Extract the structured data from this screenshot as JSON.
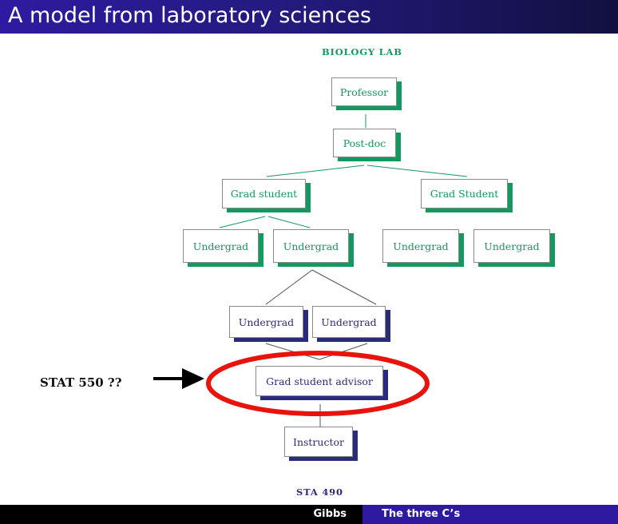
{
  "slide": {
    "title": "A model from laboratory sciences"
  },
  "diagram": {
    "top_label": "BIOLOGY LAB",
    "bottom_label": "STA 490",
    "side_label": "STAT 550 ??",
    "colors": {
      "biology": "#119960",
      "sta": "#2c2a7a",
      "highlight": "#e8130c",
      "arrow": "#000000"
    },
    "nodes": {
      "professor": "Professor",
      "postdoc": "Post-doc",
      "grad_student_left": "Grad student",
      "grad_student_right": "Grad Student",
      "undergrad_1": "Undergrad",
      "undergrad_2": "Undergrad",
      "undergrad_3": "Undergrad",
      "undergrad_4": "Undergrad",
      "undergrad_5": "Undergrad",
      "undergrad_6": "Undergrad",
      "grad_advisor": "Grad student advisor",
      "instructor": "Instructor"
    }
  },
  "footer": {
    "author": "Gibbs",
    "short_title": "The three C’s"
  }
}
